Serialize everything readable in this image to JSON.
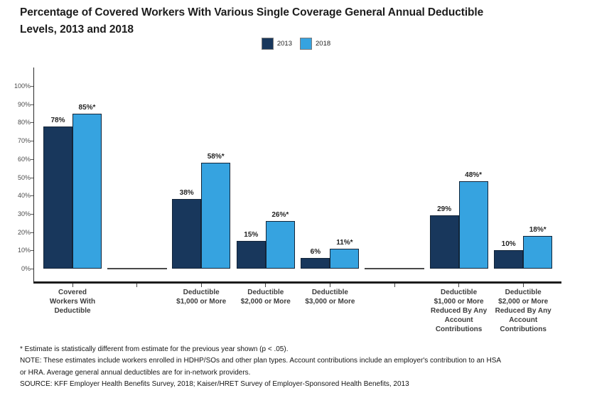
{
  "title": {
    "line1": "Percentage of Covered Workers With Various Single Coverage General Annual Deductible",
    "line2": "Levels, 2013 and 2018"
  },
  "legend": [
    {
      "label": "2013",
      "color": "#18375C"
    },
    {
      "label": "2018",
      "color": "#36A3E0"
    }
  ],
  "footnotes": {
    "line1": "* Estimate is statistically different from estimate for the previous year shown (p < .05).",
    "line2": "NOTE: These estimates include workers enrolled in HDHP/SOs and other plan types. Account contributions include an employer's contribution to an HSA",
    "line3": "or HRA. Average general annual deductibles are for in-network providers.",
    "line4": "SOURCE: KFF Employer Health Benefits Survey, 2018; Kaiser/HRET Survey of Employer-Sponsored Health Benefits, 2013"
  },
  "chart_data": {
    "type": "bar",
    "title": "Percentage of Covered Workers With Various Single Coverage General Annual Deductible Levels, 2013 and 2018",
    "categories": [
      "Covered\nWorkers With\nDeductible",
      "Deductible\n$1,000 or More",
      "Deductible\n$2,000 or More",
      "Deductible\n$3,000 or More",
      "Deductible\n$1,000 or More\nReduced By Any\nAccount\nContributions",
      "Deductible\n$2,000 or More\nReduced By Any\nAccount\nContributions"
    ],
    "series": [
      {
        "name": "2013",
        "color": "#18375C",
        "values": [
          78,
          38,
          15,
          6,
          29,
          10
        ],
        "labels": [
          "78%",
          "38%",
          "15%",
          "6%",
          "29%",
          "10%"
        ]
      },
      {
        "name": "2018",
        "color": "#36A3E0",
        "values": [
          85,
          58,
          26,
          11,
          48,
          18
        ],
        "labels": [
          "85%*",
          "58%*",
          "26%*",
          "11%*",
          "48%*",
          "18%*"
        ]
      }
    ],
    "y_ticks": [
      "0%",
      "10%",
      "20%",
      "30%",
      "40%",
      "50%",
      "60%",
      "70%",
      "80%",
      "90%",
      "100%"
    ],
    "ylim": [
      0,
      100
    ],
    "xlabel": "",
    "ylabel": "",
    "grid": false,
    "legend_position": "top-center"
  }
}
